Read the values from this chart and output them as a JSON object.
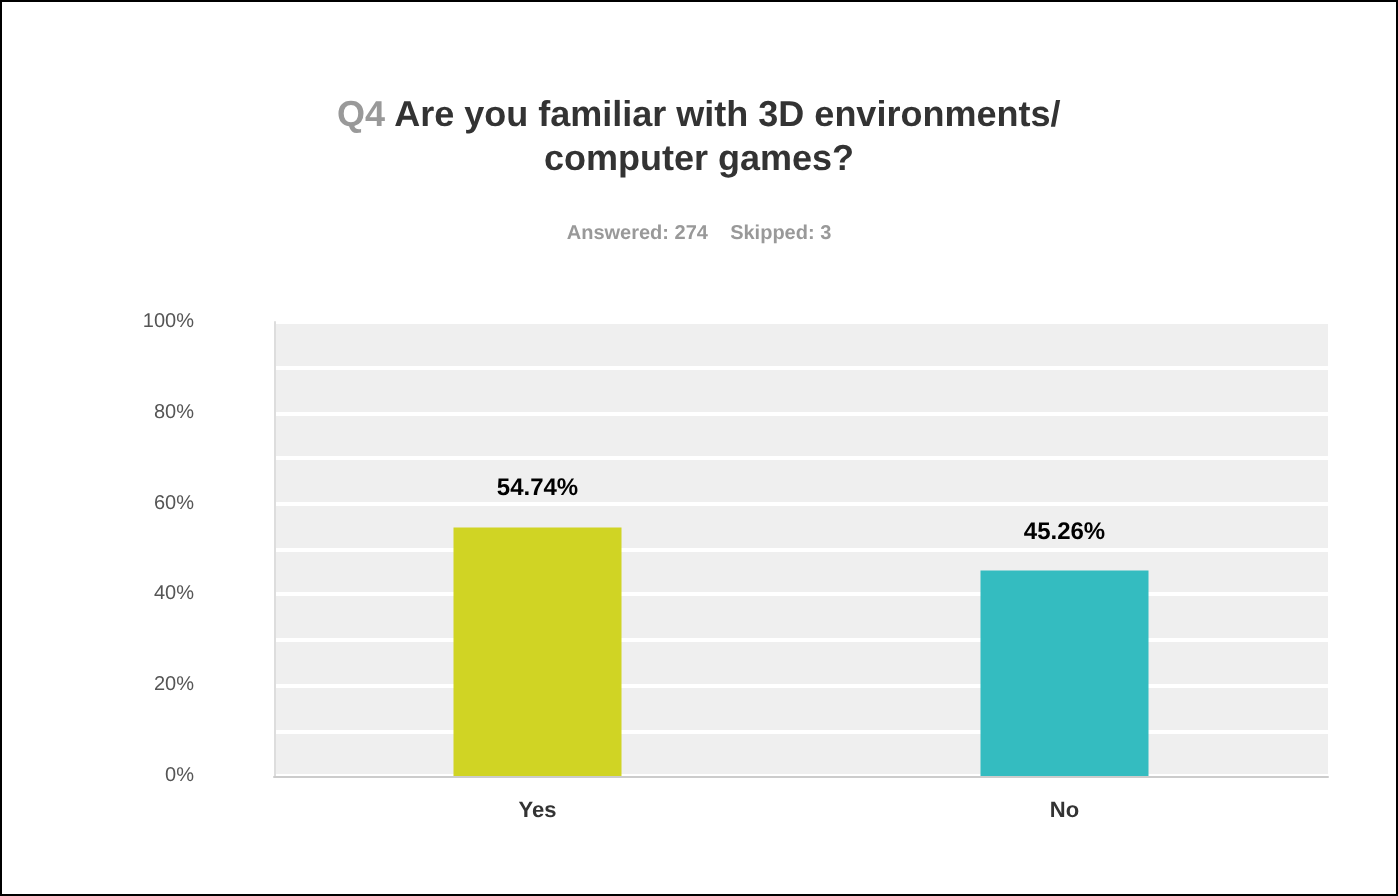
{
  "chart_data": {
    "type": "bar",
    "title": "Q4 Are you familiar with 3D environments/computer games?",
    "subtitle": "Answered: 274    Skipped: 3",
    "categories": [
      "Yes",
      "No"
    ],
    "values": [
      54.74,
      45.26
    ],
    "colors": [
      "#d0d424",
      "#34bcc0"
    ],
    "value_labels": [
      "54.74%",
      "45.26%"
    ],
    "ylim": [
      0,
      100
    ],
    "yticks": [
      {
        "value": 0,
        "label": "0%"
      },
      {
        "value": 10,
        "label": null
      },
      {
        "value": 20,
        "label": "20%"
      },
      {
        "value": 30,
        "label": null
      },
      {
        "value": 40,
        "label": "40%"
      },
      {
        "value": 50,
        "label": null
      },
      {
        "value": 60,
        "label": "60%"
      },
      {
        "value": 70,
        "label": null
      },
      {
        "value": 80,
        "label": "80%"
      },
      {
        "value": 90,
        "label": null
      },
      {
        "value": 100,
        "label": "100%"
      }
    ],
    "grid": "y"
  }
}
